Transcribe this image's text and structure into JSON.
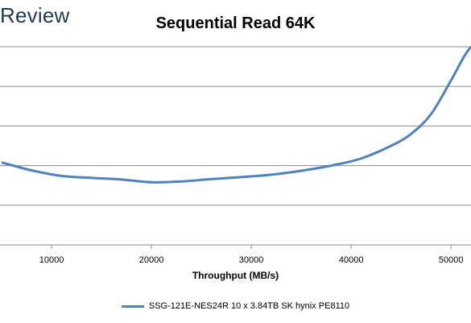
{
  "brand": {
    "text": "Review"
  },
  "chart_data": {
    "type": "line",
    "title": "Sequential Read 64K",
    "xlabel": "Throughput (MB/s)",
    "ylabel": "",
    "xlim": [
      5000,
      52000
    ],
    "ylim": [
      0,
      5
    ],
    "x_ticks": [
      10000,
      20000,
      30000,
      40000,
      50000
    ],
    "y_gridlines": [
      0,
      1,
      2,
      3,
      4,
      5
    ],
    "grid": true,
    "legend_position": "bottom",
    "series": [
      {
        "name": "SSG-121E-NES24R 10 x 3.84TB SK hynix PE8110",
        "color": "#4f81bd",
        "x": [
          5000,
          8000,
          11000,
          14000,
          17000,
          20000,
          23000,
          26000,
          29000,
          32000,
          35000,
          38000,
          41000,
          44000,
          46000,
          48000,
          50000,
          51300,
          52000
        ],
        "y": [
          2.08,
          1.88,
          1.74,
          1.69,
          1.65,
          1.58,
          1.6,
          1.66,
          1.71,
          1.77,
          1.87,
          2.0,
          2.18,
          2.5,
          2.8,
          3.3,
          4.15,
          4.75,
          5.0
        ]
      }
    ]
  }
}
